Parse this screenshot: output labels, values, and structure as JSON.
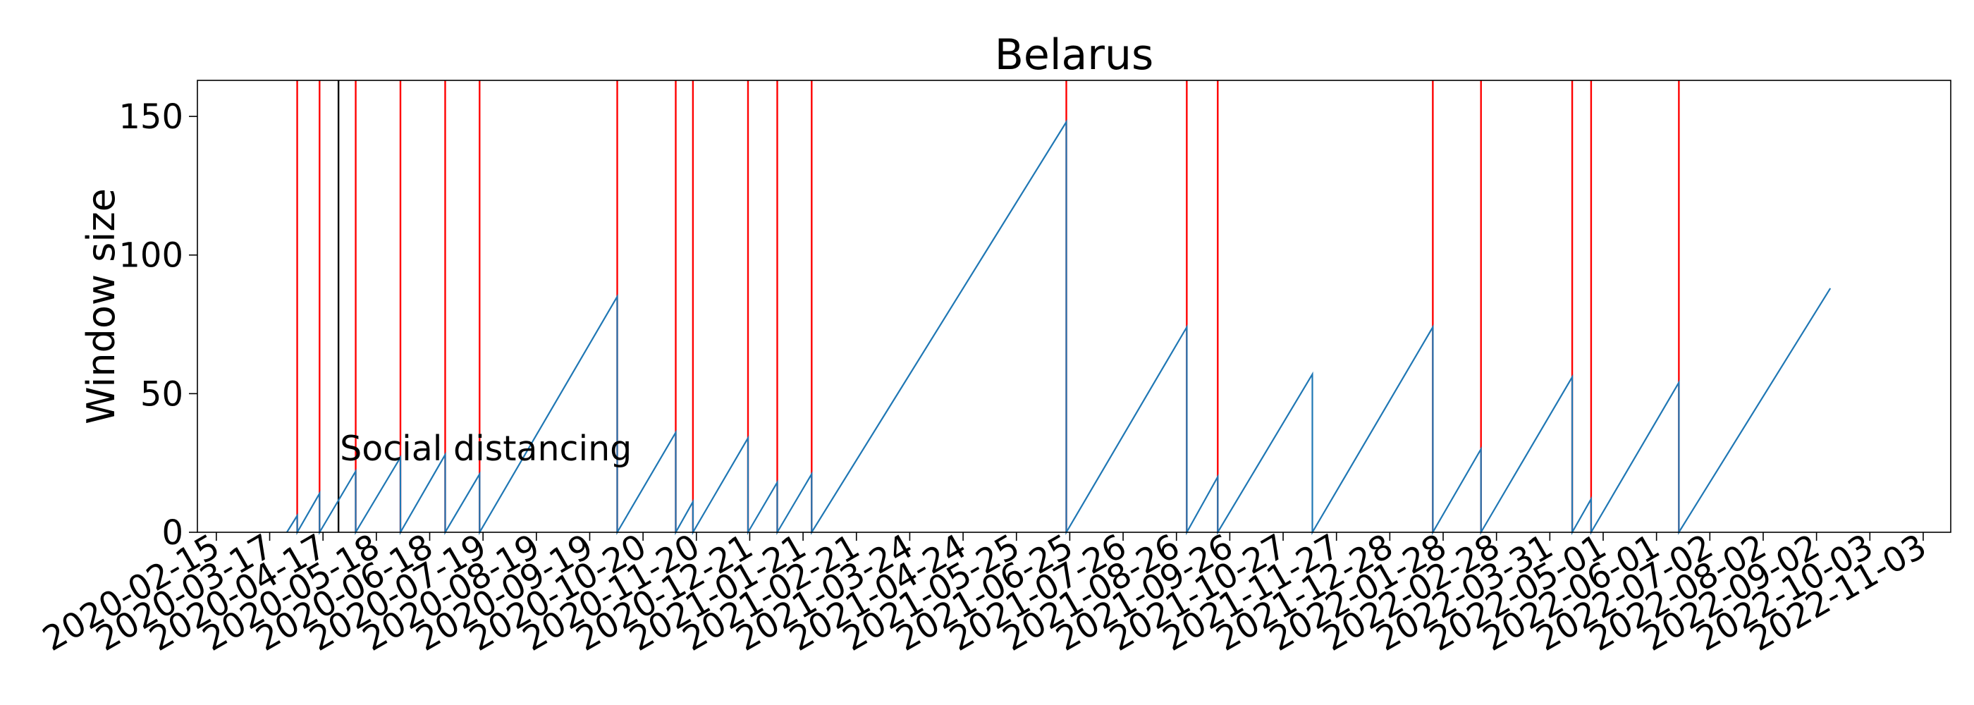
{
  "chart_data": {
    "type": "line",
    "title": "Belarus",
    "xlabel": "",
    "ylabel": "Window size",
    "x_axis": {
      "kind": "date",
      "min": "2020-02-04",
      "max": "2022-11-19",
      "ticks": [
        "2020-02-15",
        "2020-03-17",
        "2020-04-17",
        "2020-05-18",
        "2020-06-18",
        "2020-07-19",
        "2020-08-19",
        "2020-09-19",
        "2020-10-20",
        "2020-11-20",
        "2020-12-21",
        "2021-01-21",
        "2021-02-21",
        "2021-03-24",
        "2021-04-24",
        "2021-05-25",
        "2021-06-25",
        "2021-07-26",
        "2021-08-26",
        "2021-09-26",
        "2021-10-27",
        "2021-11-27",
        "2021-12-28",
        "2022-01-28",
        "2022-02-28",
        "2022-03-31",
        "2022-05-01",
        "2022-06-01",
        "2022-07-02",
        "2022-08-02",
        "2022-09-02",
        "2022-10-03",
        "2022-11-03"
      ]
    },
    "y_axis": {
      "min": 0,
      "max": 163,
      "ticks": [
        0,
        50,
        100,
        150
      ]
    },
    "grid": false,
    "series": [
      {
        "color": "#1f77b4",
        "points": [
          {
            "x": "2020-03-27",
            "y": 0
          },
          {
            "x": "2020-04-02",
            "y": 6
          },
          {
            "x": "2020-04-02",
            "y": 0
          },
          {
            "x": "2020-04-15",
            "y": 14
          },
          {
            "x": "2020-04-15",
            "y": 0
          },
          {
            "x": "2020-05-06",
            "y": 22
          },
          {
            "x": "2020-05-06",
            "y": 0
          },
          {
            "x": "2020-06-01",
            "y": 27
          },
          {
            "x": "2020-06-01",
            "y": 0
          },
          {
            "x": "2020-06-27",
            "y": 28
          },
          {
            "x": "2020-06-27",
            "y": 0
          },
          {
            "x": "2020-07-17",
            "y": 21
          },
          {
            "x": "2020-07-17",
            "y": 0
          },
          {
            "x": "2020-10-05",
            "y": 85
          },
          {
            "x": "2020-10-05",
            "y": 0
          },
          {
            "x": "2020-11-08",
            "y": 36
          },
          {
            "x": "2020-11-08",
            "y": 0
          },
          {
            "x": "2020-11-18",
            "y": 11
          },
          {
            "x": "2020-11-18",
            "y": 0
          },
          {
            "x": "2020-12-20",
            "y": 34
          },
          {
            "x": "2020-12-20",
            "y": 0
          },
          {
            "x": "2021-01-06",
            "y": 18
          },
          {
            "x": "2021-01-06",
            "y": 0
          },
          {
            "x": "2021-01-26",
            "y": 21
          },
          {
            "x": "2021-01-26",
            "y": 0
          },
          {
            "x": "2021-06-23",
            "y": 148
          },
          {
            "x": "2021-06-23",
            "y": 0
          },
          {
            "x": "2021-09-01",
            "y": 74
          },
          {
            "x": "2021-09-01",
            "y": 0
          },
          {
            "x": "2021-09-19",
            "y": 20
          },
          {
            "x": "2021-09-19",
            "y": 0
          },
          {
            "x": "2021-11-13",
            "y": 57
          },
          {
            "x": "2021-11-13",
            "y": 0
          },
          {
            "x": "2022-01-22",
            "y": 74
          },
          {
            "x": "2022-01-22",
            "y": 0
          },
          {
            "x": "2022-02-19",
            "y": 30
          },
          {
            "x": "2022-02-19",
            "y": 0
          },
          {
            "x": "2022-04-13",
            "y": 56
          },
          {
            "x": "2022-04-13",
            "y": 0
          },
          {
            "x": "2022-04-24",
            "y": 12
          },
          {
            "x": "2022-04-24",
            "y": 0
          },
          {
            "x": "2022-06-14",
            "y": 54
          },
          {
            "x": "2022-06-14",
            "y": 0
          },
          {
            "x": "2022-09-10",
            "y": 88
          }
        ]
      }
    ],
    "vertical_lines": [
      {
        "x": "2020-04-02",
        "color": "#ff0000"
      },
      {
        "x": "2020-04-15",
        "color": "#ff0000"
      },
      {
        "x": "2020-04-26",
        "color": "#000000"
      },
      {
        "x": "2020-05-06",
        "color": "#ff0000"
      },
      {
        "x": "2020-06-01",
        "color": "#ff0000"
      },
      {
        "x": "2020-06-27",
        "color": "#ff0000"
      },
      {
        "x": "2020-07-17",
        "color": "#ff0000"
      },
      {
        "x": "2020-10-05",
        "color": "#ff0000"
      },
      {
        "x": "2020-11-08",
        "color": "#ff0000"
      },
      {
        "x": "2020-11-18",
        "color": "#ff0000"
      },
      {
        "x": "2020-12-20",
        "color": "#ff0000"
      },
      {
        "x": "2021-01-06",
        "color": "#ff0000"
      },
      {
        "x": "2021-01-26",
        "color": "#ff0000"
      },
      {
        "x": "2021-06-23",
        "color": "#ff0000"
      },
      {
        "x": "2021-09-01",
        "color": "#ff0000"
      },
      {
        "x": "2021-09-19",
        "color": "#ff0000"
      },
      {
        "x": "2022-01-22",
        "color": "#ff0000"
      },
      {
        "x": "2022-02-19",
        "color": "#ff0000"
      },
      {
        "x": "2022-04-13",
        "color": "#ff0000"
      },
      {
        "x": "2022-04-24",
        "color": "#ff0000"
      },
      {
        "x": "2022-06-14",
        "color": "#ff0000"
      }
    ],
    "annotations": [
      {
        "text": "Social distancing",
        "x": "2020-04-26",
        "y": 27
      }
    ]
  }
}
